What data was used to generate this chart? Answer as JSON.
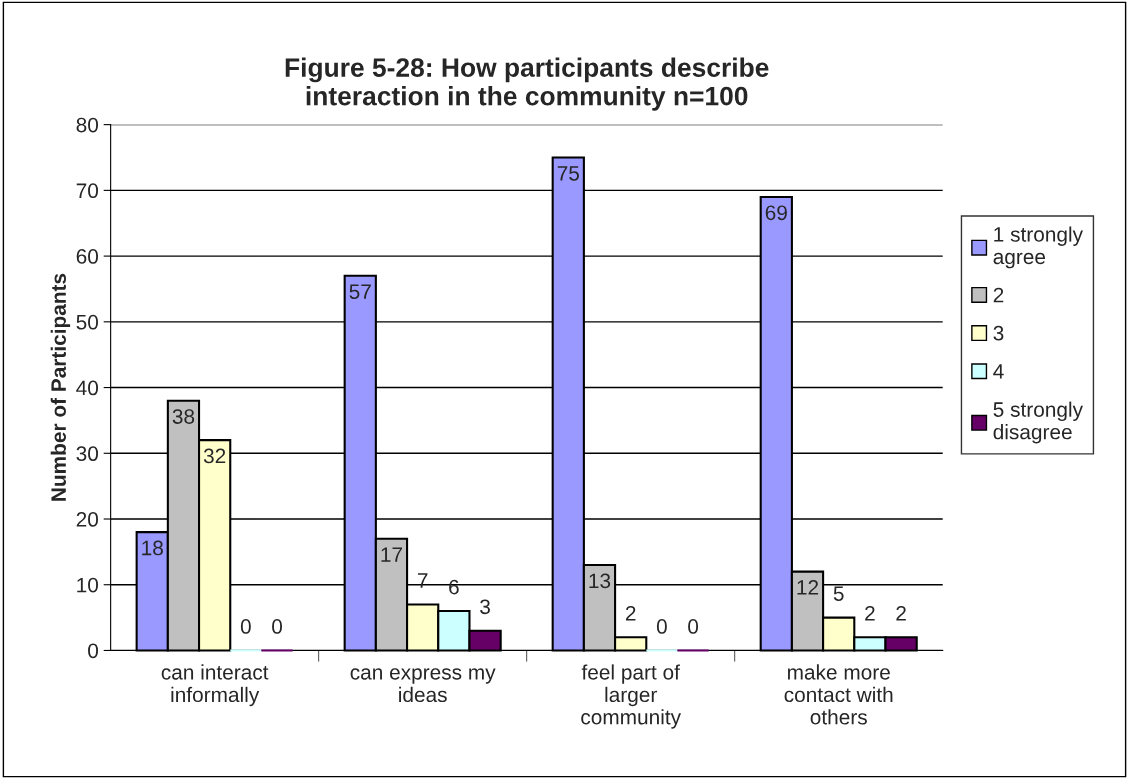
{
  "chart_data": {
    "type": "bar",
    "title": "Figure 5-28: How participants describe\ninteraction in the community n=100",
    "ylabel": "Number of Participants",
    "categories": [
      "can interact\ninformally",
      "can express my\nideas",
      "feel part of\nlarger\ncommunity",
      "make more\ncontact with\nothers"
    ],
    "series": [
      {
        "name": "1 strongly\nagree",
        "color": "#9999ff",
        "values": [
          18,
          57,
          75,
          69
        ]
      },
      {
        "name": "2",
        "color": "#c0c0c0",
        "values": [
          38,
          17,
          13,
          12
        ]
      },
      {
        "name": "3",
        "color": "#ffffcc",
        "values": [
          32,
          7,
          2,
          5
        ]
      },
      {
        "name": "4",
        "color": "#ccffff",
        "values": [
          0,
          6,
          0,
          2
        ]
      },
      {
        "name": "5 strongly\ndisagree",
        "color": "#660066",
        "values": [
          0,
          3,
          0,
          2
        ]
      }
    ],
    "ylim": [
      0,
      80
    ],
    "yticks": [
      0,
      10,
      20,
      30,
      40,
      50,
      60,
      70,
      80
    ],
    "grid": "y",
    "legend": "right",
    "data_labels": true
  }
}
